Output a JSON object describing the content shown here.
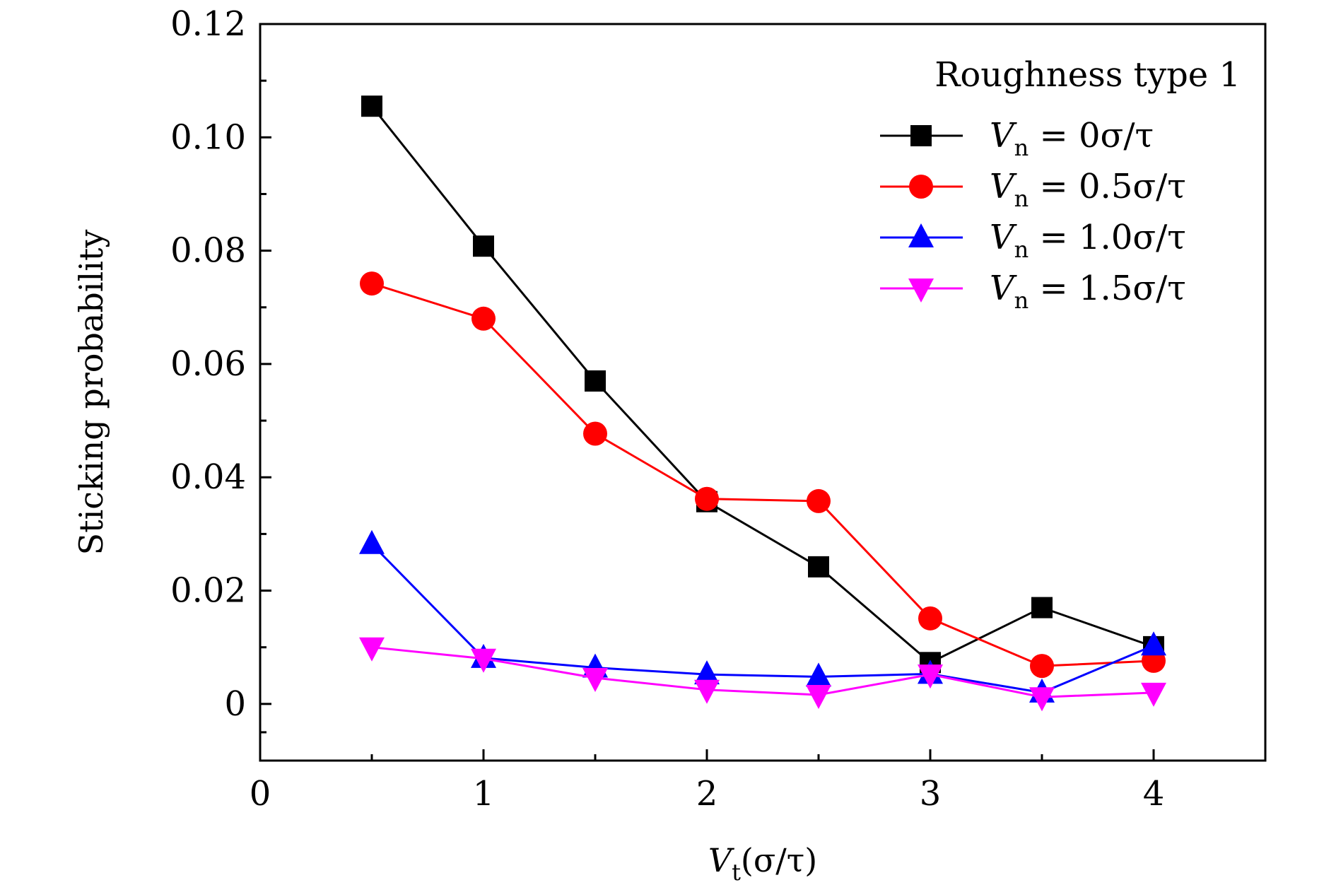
{
  "chart_data": {
    "type": "line",
    "title": "",
    "xlabel": {
      "main": "V",
      "sub": "t",
      "rest": "(σ/τ)"
    },
    "ylabel": "Sticking probability",
    "xlim": [
      0,
      4.5
    ],
    "ylim": [
      -0.01,
      0.12
    ],
    "x_ticks": [
      0,
      1,
      2,
      3,
      4
    ],
    "x_tick_labels": [
      "0",
      "1",
      "2",
      "3",
      "4"
    ],
    "y_ticks": [
      0,
      0.02,
      0.04,
      0.06,
      0.08,
      0.1,
      0.12
    ],
    "y_tick_labels": [
      "0",
      "0.02",
      "0.04",
      "0.06",
      "0.08",
      "0.10",
      "0.12"
    ],
    "grid": false,
    "legend_title": "Roughness type 1",
    "legend_position": "top-right",
    "x": [
      0.5,
      1.0,
      1.5,
      2.0,
      2.5,
      3.0,
      3.5,
      4.0
    ],
    "series": [
      {
        "label_main": "V",
        "label_sub": "n",
        "label_rest": " = 0σ/τ",
        "color": "#000000",
        "marker": "square",
        "values": [
          0.1055,
          0.0808,
          0.057,
          0.0357,
          0.0242,
          0.0073,
          0.017,
          0.0101
        ]
      },
      {
        "label_main": "V",
        "label_sub": "n",
        "label_rest": " = 0.5σ/τ",
        "color": "#ff0000",
        "marker": "circle",
        "values": [
          0.0742,
          0.068,
          0.0477,
          0.0362,
          0.0358,
          0.0151,
          0.0067,
          0.0076
        ]
      },
      {
        "label_main": "V",
        "label_sub": "n",
        "label_rest": " = 1.0σ/τ",
        "color": "#0000ff",
        "marker": "triangle-up",
        "values": [
          0.0282,
          0.0081,
          0.0064,
          0.0052,
          0.0048,
          0.0053,
          0.002,
          0.0103
        ]
      },
      {
        "label_main": "V",
        "label_sub": "n",
        "label_rest": " = 1.5σ/τ",
        "color": "#ff00ff",
        "marker": "triangle-down",
        "values": [
          0.01,
          0.008,
          0.0046,
          0.0025,
          0.0016,
          0.0052,
          0.0012,
          0.002
        ]
      }
    ]
  }
}
